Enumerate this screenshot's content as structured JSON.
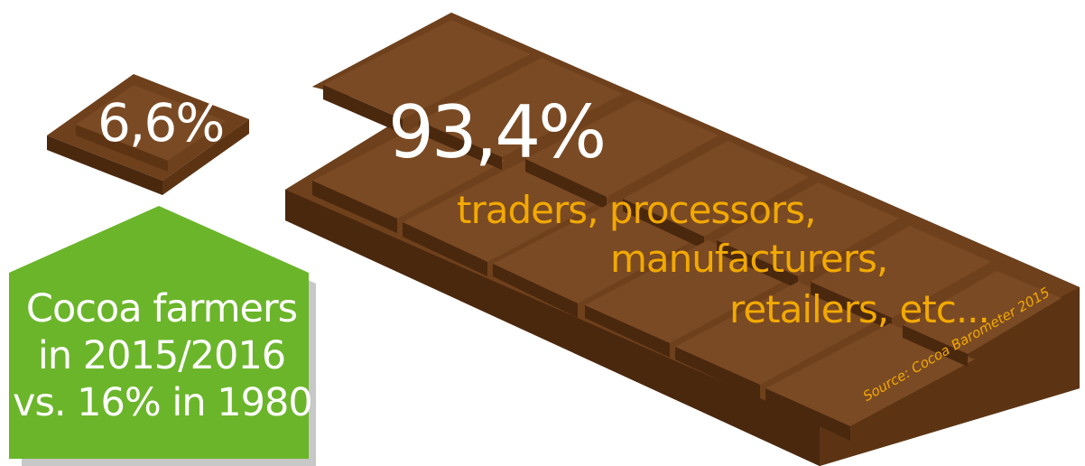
{
  "chart_data": {
    "type": "pie",
    "style": "pictorial chocolate bar split into two pieces",
    "slices": [
      {
        "label_lines": [
          "Cocoa farmers",
          "in 2015/2016",
          "vs. 16% in 1980"
        ],
        "value": 6.6,
        "value_label": "6,6%"
      },
      {
        "label_lines": [
          "traders, processors,",
          "manufacturers,",
          "retailers, etc..."
        ],
        "value": 93.4,
        "value_label": "93,4%"
      }
    ],
    "source": "Source: Cocoa Barometer 2015"
  },
  "colors": {
    "chocolate_top": "#7a4a24",
    "chocolate_side": "#5c3414",
    "chocolate_dark": "#4a280e",
    "farmer_box": "#6bb52a",
    "farmer_box_shadow": "#c8c8c8",
    "accent_text": "#f2a900",
    "value_text": "#ffffff"
  }
}
